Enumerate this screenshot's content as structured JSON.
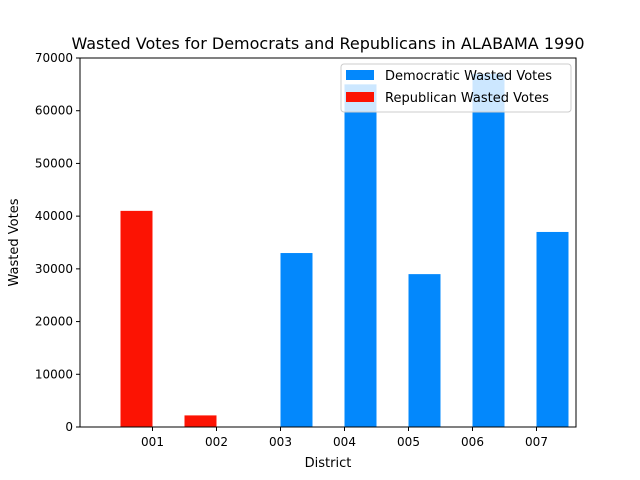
{
  "chart_data": {
    "type": "bar",
    "title": "Wasted Votes for Democrats and Republicans in ALABAMA 1990",
    "xlabel": "District",
    "ylabel": "Wasted Votes",
    "categories": [
      "001",
      "002",
      "003",
      "004",
      "005",
      "006",
      "007"
    ],
    "series": [
      {
        "name": "Democratic Wasted Votes",
        "color": "#0388fc",
        "values": [
          0,
          0,
          33000,
          65000,
          29000,
          67000,
          37000
        ]
      },
      {
        "name": "Republican Wasted Votes",
        "color": "#fc1303",
        "values": [
          41000,
          2200,
          0,
          0,
          0,
          0,
          0
        ]
      }
    ],
    "ylim": [
      0,
      70000
    ],
    "yticks": [
      0,
      10000,
      20000,
      30000,
      40000,
      50000,
      60000,
      70000
    ],
    "legend_position": "top-right",
    "grid": false
  }
}
